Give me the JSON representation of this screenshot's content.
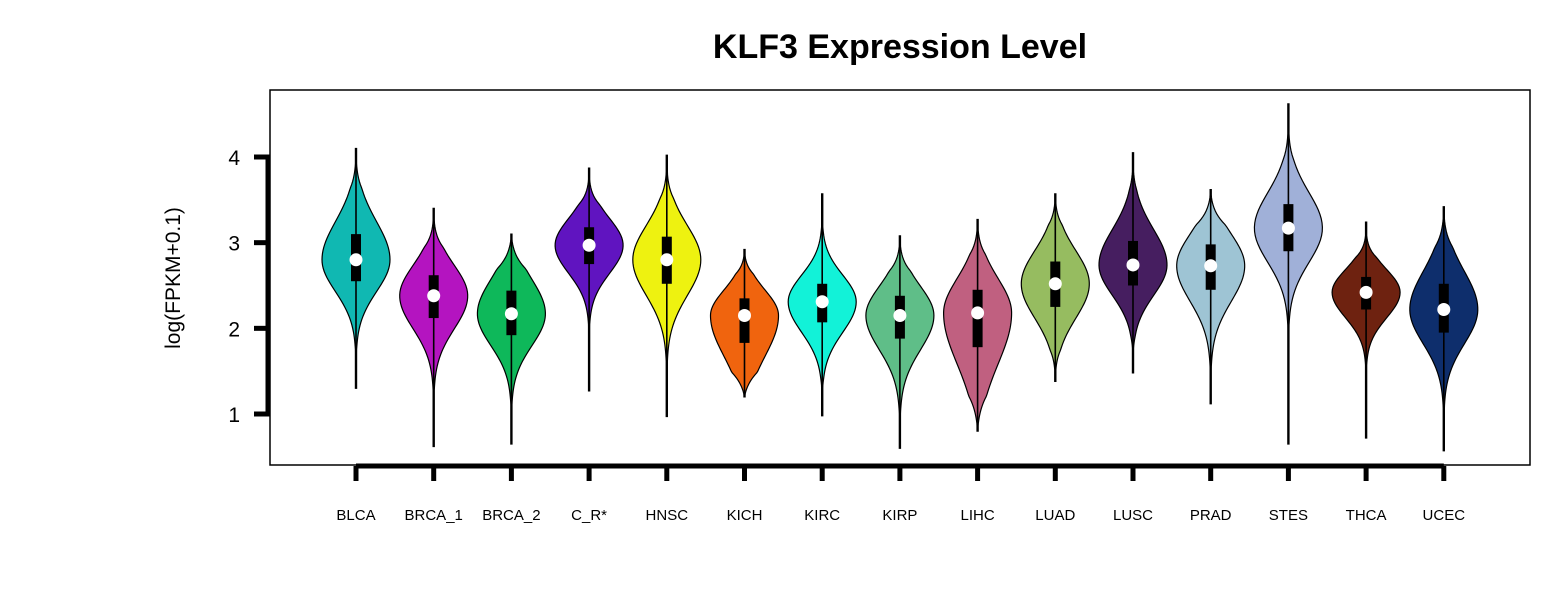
{
  "chart_data": {
    "type": "violin",
    "title": "KLF3 Expression Level",
    "ylabel": "log(FPKM+0.1)",
    "xlabel": "",
    "ylim": [
      0.4,
      4.8
    ],
    "yticks": [
      1,
      2,
      3,
      4
    ],
    "grid": false,
    "legend": "none",
    "categories": [
      "BLCA",
      "BRCA_1",
      "BRCA_2",
      "C_R*",
      "HNSC",
      "KICH",
      "KIRC",
      "KIRP",
      "LIHC",
      "LUAD",
      "LUSC",
      "PRAD",
      "STES",
      "THCA",
      "UCEC"
    ],
    "series": [
      {
        "category": "BLCA",
        "color": "#10b8b2",
        "min": 1.3,
        "max": 4.1,
        "q1": 2.55,
        "median": 2.8,
        "q3": 3.1,
        "upper_adj": 3.8,
        "lower_adj": 1.7
      },
      {
        "category": "BRCA_1",
        "color": "#b414c0",
        "min": 0.62,
        "max": 3.4,
        "q1": 2.12,
        "median": 2.38,
        "q3": 2.62,
        "upper_adj": 3.4,
        "lower_adj": 1.0
      },
      {
        "category": "BRCA_2",
        "color": "#0eb85a",
        "min": 0.65,
        "max": 3.1,
        "q1": 1.92,
        "median": 2.17,
        "q3": 2.44,
        "upper_adj": 3.1,
        "lower_adj": 1.1
      },
      {
        "category": "C_R*",
        "color": "#6014c0",
        "min": 1.27,
        "max": 3.87,
        "q1": 2.75,
        "median": 2.97,
        "q3": 3.18,
        "upper_adj": 3.87,
        "lower_adj": 1.9
      },
      {
        "category": "HNSC",
        "color": "#eef210",
        "min": 0.97,
        "max": 4.02,
        "q1": 2.52,
        "median": 2.8,
        "q3": 3.07,
        "upper_adj": 3.9,
        "lower_adj": 1.5
      },
      {
        "category": "KICH",
        "color": "#f0640e",
        "min": 1.2,
        "max": 2.92,
        "q1": 1.83,
        "median": 2.15,
        "q3": 2.35,
        "upper_adj": 2.92,
        "lower_adj": 1.2
      },
      {
        "category": "KIRC",
        "color": "#12f2d8",
        "min": 0.98,
        "max": 3.57,
        "q1": 2.07,
        "median": 2.31,
        "q3": 2.52,
        "upper_adj": 3.2,
        "lower_adj": 1.4
      },
      {
        "category": "KIRP",
        "color": "#5fbe88",
        "min": 0.6,
        "max": 3.08,
        "q1": 1.88,
        "median": 2.15,
        "q3": 2.38,
        "upper_adj": 3.08,
        "lower_adj": 0.95
      },
      {
        "category": "LIHC",
        "color": "#c06080",
        "min": 0.8,
        "max": 3.27,
        "q1": 1.78,
        "median": 2.18,
        "q3": 2.45,
        "upper_adj": 3.27,
        "lower_adj": 0.9
      },
      {
        "category": "LUAD",
        "color": "#96bc60",
        "min": 1.38,
        "max": 3.57,
        "q1": 2.25,
        "median": 2.52,
        "q3": 2.78,
        "upper_adj": 3.4,
        "lower_adj": 1.7
      },
      {
        "category": "LUSC",
        "color": "#461e60",
        "min": 1.48,
        "max": 4.05,
        "q1": 2.5,
        "median": 2.74,
        "q3": 3.02,
        "upper_adj": 3.8,
        "lower_adj": 1.9
      },
      {
        "category": "PRAD",
        "color": "#9ec4d4",
        "min": 1.12,
        "max": 3.62,
        "q1": 2.45,
        "median": 2.73,
        "q3": 2.98,
        "upper_adj": 3.62,
        "lower_adj": 1.6
      },
      {
        "category": "STES",
        "color": "#a0b0d8",
        "min": 0.65,
        "max": 4.62,
        "q1": 2.9,
        "median": 3.17,
        "q3": 3.45,
        "upper_adj": 4.3,
        "lower_adj": 2.0
      },
      {
        "category": "THCA",
        "color": "#6e2210",
        "min": 0.72,
        "max": 3.24,
        "q1": 2.22,
        "median": 2.42,
        "q3": 2.6,
        "upper_adj": 3.24,
        "lower_adj": 1.6
      },
      {
        "category": "UCEC",
        "color": "#0e2e6c",
        "min": 0.57,
        "max": 3.42,
        "q1": 1.95,
        "median": 2.22,
        "q3": 2.52,
        "upper_adj": 3.42,
        "lower_adj": 0.9
      }
    ]
  }
}
